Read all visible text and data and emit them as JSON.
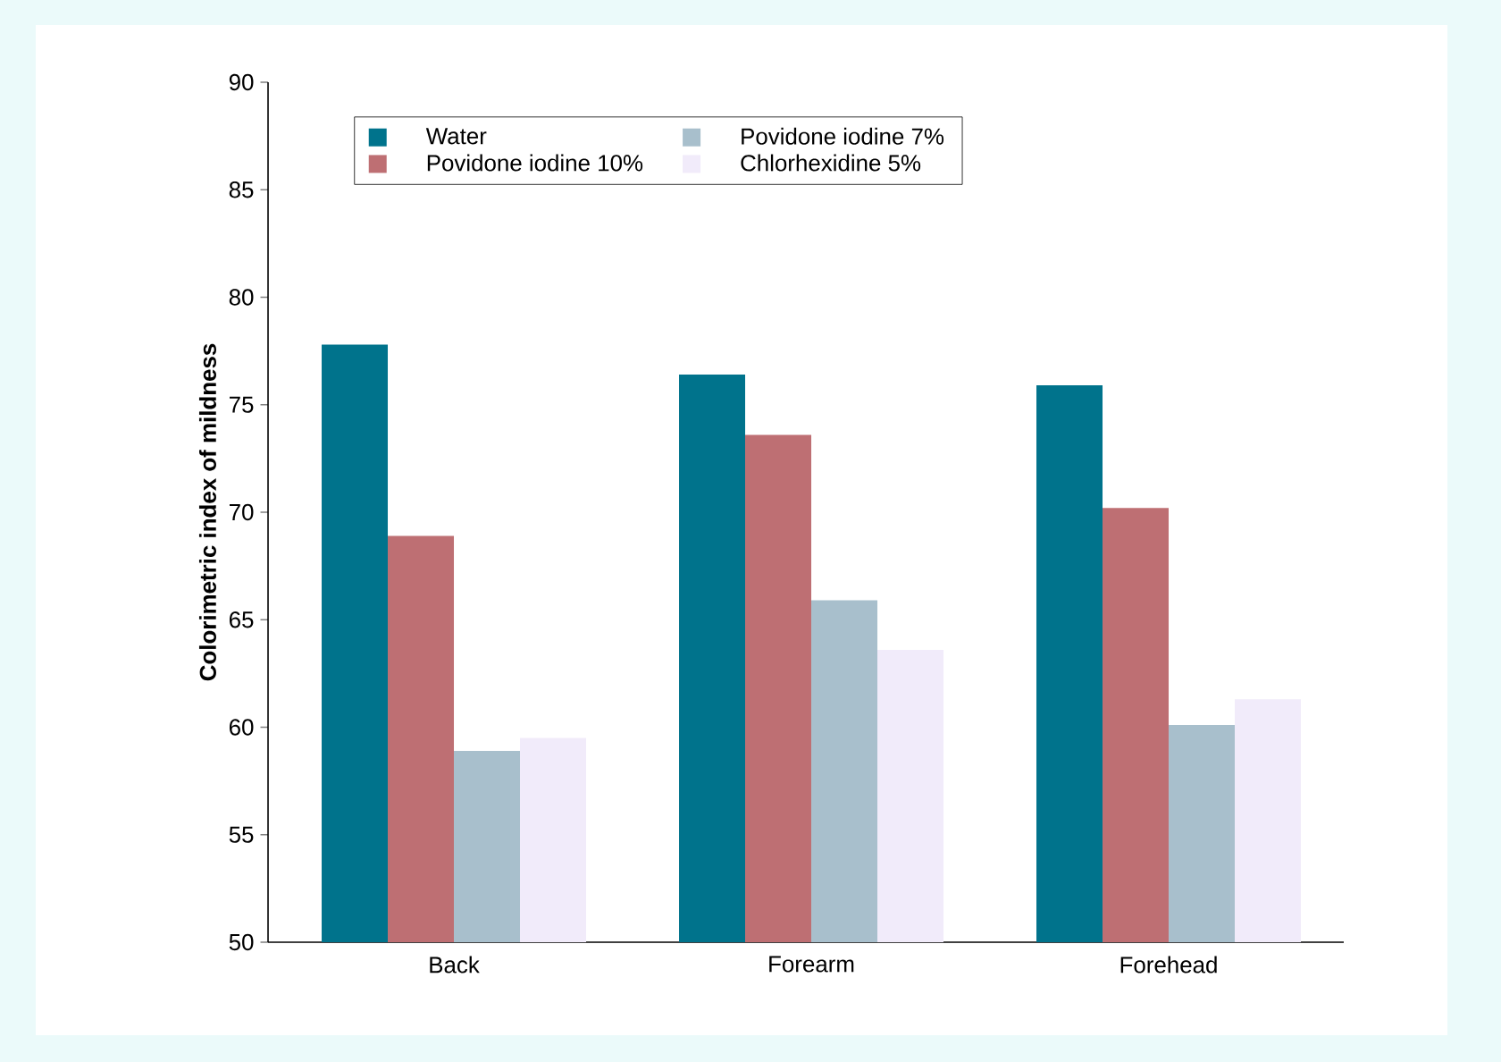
{
  "chart_data": {
    "type": "bar",
    "ylabel": "**Colorimetric index of mildness**",
    "categories": [
      "Back",
      "Forearm",
      "Forehead"
    ],
    "series": [
      {
        "name": "Water",
        "color": "#00738c",
        "values": [
          77.8,
          76.4,
          75.9
        ]
      },
      {
        "name": "Povidone iodine 10%",
        "color": "#be6f73",
        "values": [
          68.9,
          73.6,
          70.2
        ]
      },
      {
        "name": "Povidone iodine 7%",
        "color": "#a8bfcc",
        "values": [
          58.9,
          65.9,
          60.1
        ]
      },
      {
        "name": "Chlorhexidine 5%",
        "color": "#f1ebfa",
        "values": [
          59.5,
          63.6,
          61.3
        ]
      }
    ],
    "ylim": [
      50,
      90
    ],
    "yticks": [
      50,
      55,
      60,
      65,
      70,
      75,
      80,
      85,
      90
    ],
    "grid": false,
    "legend": "top left"
  }
}
